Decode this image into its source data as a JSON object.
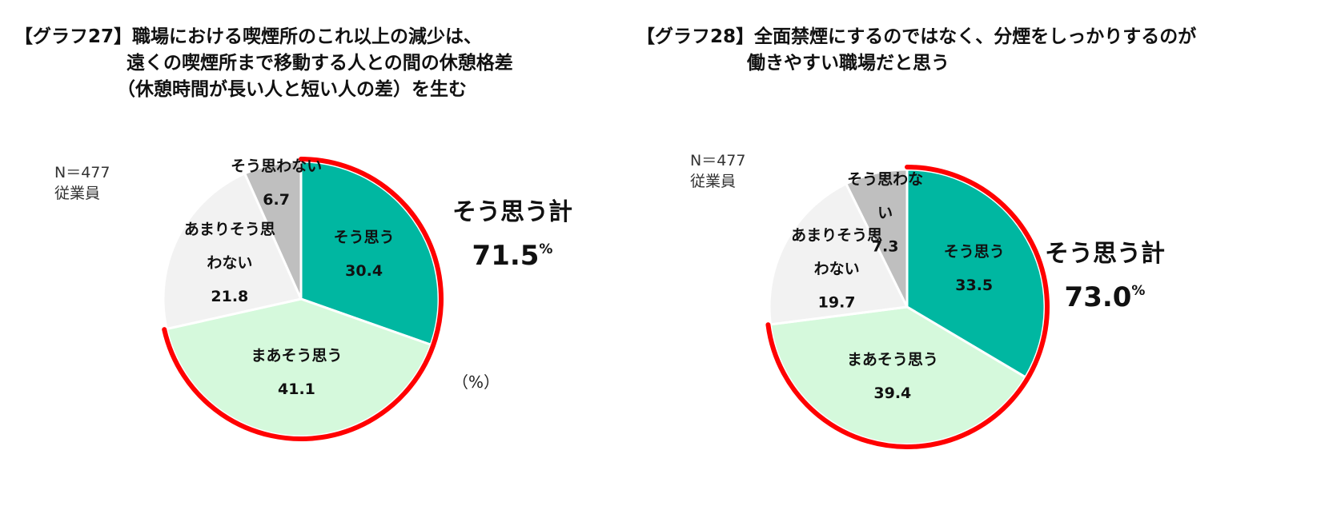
{
  "charts": [
    {
      "title_lines": [
        "【グラフ27】職場における喫煙所のこれ以上の減少は、",
        "遠くの喫煙所まで移動する人との間の休憩格差",
        "（休憩時間が長い人と短い人の差）を生む"
      ],
      "sample": "N＝477",
      "group": "従業員",
      "unit_note": "（%）",
      "total_label": "そう思う計",
      "total_value": "71.5",
      "total_unit": "%"
    },
    {
      "title_lines": [
        "【グラフ28】全面禁煙にするのではなく、分煙をしっかりするのが",
        "働きやすい職場だと思う"
      ],
      "sample": "N＝477",
      "group": "従業員",
      "total_label": "そう思う計",
      "total_value": "73.0",
      "total_unit": "%"
    }
  ],
  "colors": {
    "agree": "#00b7a1",
    "somewhat_agree": "#d5f9dc",
    "not_really": "#f2f2f2",
    "disagree": "#bfbfbf",
    "highlight_arc": "#ff0000"
  },
  "chart_data": [
    {
      "type": "pie",
      "unit": "%",
      "slices": [
        {
          "label_lines": [
            "そう思う"
          ],
          "value": 30.4,
          "display": "30.4",
          "color_key": "agree"
        },
        {
          "label_lines": [
            "まあそう思う"
          ],
          "value": 41.1,
          "display": "41.1",
          "color_key": "somewhat_agree"
        },
        {
          "label_lines": [
            "あまりそう思",
            "わない"
          ],
          "value": 21.8,
          "display": "21.8",
          "color_key": "not_really"
        },
        {
          "label_lines": [
            "そう思わない"
          ],
          "value": 6.7,
          "display": "6.7",
          "color_key": "disagree"
        }
      ],
      "highlighted_total": {
        "label": "そう思う計",
        "value": 71.5
      }
    },
    {
      "type": "pie",
      "unit": "%",
      "slices": [
        {
          "label_lines": [
            "そう思う"
          ],
          "value": 33.5,
          "display": "33.5",
          "color_key": "agree"
        },
        {
          "label_lines": [
            "まあそう思う"
          ],
          "value": 39.4,
          "display": "39.4",
          "color_key": "somewhat_agree"
        },
        {
          "label_lines": [
            "あまりそう思",
            "わない"
          ],
          "value": 19.7,
          "display": "19.7",
          "color_key": "not_really"
        },
        {
          "label_lines": [
            "そう思わな",
            "い"
          ],
          "value": 7.3,
          "display": "7.3",
          "color_key": "disagree"
        }
      ],
      "highlighted_total": {
        "label": "そう思う計",
        "value": 73.0
      }
    }
  ]
}
